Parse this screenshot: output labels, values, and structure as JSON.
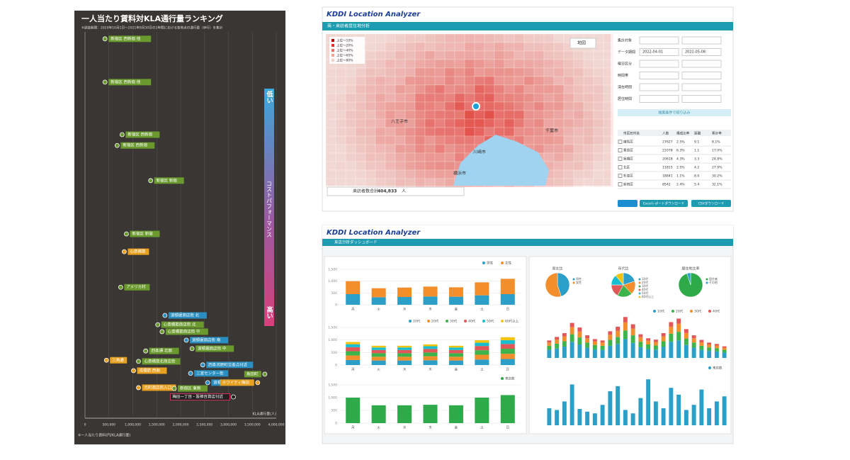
{
  "ranking_panel": {
    "title": "一人当たり賃料対KLA通行量ランキング",
    "subtitle": "※調査期間：2020年10月1日～2021年9月30日の1年間における各地点の通行量（歩行）を集計",
    "cost_low": "低い",
    "cost_axis": "コストパフォーマンス",
    "cost_high": "高い",
    "footnote": "※一人当たり賃料(円/KLA通行量)"
  },
  "map_app": {
    "brand": "KDDI Location Analyzer",
    "tab": "商・来訪者居住地分析",
    "map_type": "地図",
    "map_labels": [
      "八王子市",
      "川崎市",
      "横浜市",
      "千葉市"
    ],
    "legend": [
      "上位～10%",
      "上位～20%",
      "上位～40%",
      "上位～60%",
      "上位～80%"
    ],
    "visitor_total_label": "来訪者数合計",
    "visitor_total": "404,833",
    "visitor_unit": "人",
    "form_labels": [
      "集計対象",
      "データ期間",
      "曜日区分",
      "時間帯",
      "滞在時間",
      "居住時間"
    ],
    "date_from": "2022-04-01",
    "date_to": "2022-05-08",
    "filter_button": "検索条件で絞り込み",
    "table": {
      "header": [
        "市区町村名",
        "人数",
        "構成比率",
        "距離",
        "累計率"
      ],
      "rows": [
        [
          "練馬区",
          "27627",
          "2.5%",
          "9.1",
          "8.1%"
        ],
        [
          "豊島区",
          "22078",
          "6.3%",
          "1.1",
          "17.0%"
        ],
        [
          "板橋区",
          "20618",
          "4.3%",
          "3.3",
          "24.8%"
        ],
        [
          "北区",
          "11815",
          "2.5%",
          "4.2",
          "27.9%"
        ],
        [
          "杉並区",
          "18841",
          "1.1%",
          "8.0",
          "30.2%"
        ],
        [
          "新宿区",
          "8542",
          "2.4%",
          "5.4",
          "32.1%"
        ]
      ]
    },
    "buttons": [
      "Excelレポートダウンロード",
      "CSVダウンロード"
    ]
  },
  "dashboard_app": {
    "brand": "KDDI Location Analyzer",
    "tab": "来店分析ダッシュボード"
  },
  "chart_data": [
    {
      "type": "scatter",
      "x_label": "KLA通行量(人)",
      "xlim": [
        0,
        4000000
      ],
      "ylim": [
        0,
        10
      ],
      "xticks": [
        0,
        {
          "value": 500000,
          "label": "500,000"
        },
        {
          "value": 1000000,
          "label": "1,000,000"
        },
        {
          "value": 1500000,
          "label": "1,500,000"
        },
        {
          "value": 2000000,
          "label": "2,000,000"
        },
        {
          "value": 2500000,
          "label": "2,500,000"
        },
        {
          "value": 3000000,
          "label": "3,000,000"
        },
        {
          "value": 3500000,
          "label": "3,500,000"
        },
        {
          "value": 4000000,
          "label": "4,000,000"
        }
      ],
      "x": [
        418000,
        418000,
        776000,
        672000,
        1373000,
        866000,
        821000,
        746000,
        1672000,
        1522000,
        1612000,
        2119000,
        2239000,
        448000,
        1015000,
        1269000,
        1119000,
        2463000,
        2209000,
        1119000,
        1866000,
        2567000,
        3761000,
        3612000,
        3104000
      ],
      "values": [
        9.82,
        8.7,
        7.34,
        7.06,
        6.15,
        4.77,
        4.31,
        3.39,
        2.66,
        2.42,
        2.24,
        2.02,
        1.8,
        1.5,
        1.23,
        1.74,
        1.47,
        1.38,
        1.16,
        0.79,
        0.77,
        0.92,
        1.14,
        0.92,
        0.55
      ],
      "point_labels": [
        "新宿区 西新宿 他",
        "新宿区 西新宿 他",
        "新宿区 西新宿",
        "新宿区 西新宿",
        "新宿区 新宿",
        "新宿区 新宿",
        "心斎橋筋",
        "アメリカ村",
        "道頓堀商店街 北",
        "心斎橋筋商店街 北",
        "心斎橋筋商店街 中",
        "道頓堀商店街 南",
        "道頓堀商店街 中",
        "三角通",
        "戎橋筋 西側",
        "四条通 北側",
        "心斎橋筋北商店街",
        "四条河原町交差点付近",
        "三宮センター街",
        "元町商店街入口",
        "新宿区 東側",
        "道頓堀商店街 東",
        "角田町",
        "ホワイティ梅田",
        "梅田一丁目・阪神百貨店付近"
      ],
      "point_colors": [
        "#6a9a2e",
        "#6a9a2e",
        "#6a9a2e",
        "#6a9a2e",
        "#6a9a2e",
        "#6a9a2e",
        "#e8a020",
        "#6a9a2e",
        "#2a8fc0",
        "#6a9a2e",
        "#6a9a2e",
        "#2a8fc0",
        "#6a9a2e",
        "#e8a020",
        "#e8a020",
        "#6a9a2e",
        "#6a9a2e",
        "#2a8fc0",
        "#2a8fc0",
        "#e8a020",
        "#6a9a2e",
        "#2a8fc0",
        "#6a9a2e",
        "#e8a020",
        "#222222"
      ]
    },
    {
      "type": "bar",
      "stacked": true,
      "categories": [
        "月",
        "火",
        "水",
        "木",
        "金",
        "土",
        "日"
      ],
      "ylim": [
        0,
        1500
      ],
      "yticks": [
        0,
        500,
        {
          "value": 1000,
          "label": "1,000"
        },
        {
          "value": 1500,
          "label": "1,500"
        }
      ],
      "series": [
        {
          "name": "男性",
          "color": "#2c9fc9",
          "values": [
            450,
            320,
            330,
            350,
            340,
            400,
            450
          ]
        },
        {
          "name": "女性",
          "color": "#f28e2b",
          "values": [
            550,
            380,
            400,
            420,
            400,
            550,
            650
          ]
        }
      ]
    },
    {
      "type": "bar",
      "stacked": true,
      "categories": [
        "月",
        "火",
        "水",
        "木",
        "金",
        "土",
        "日"
      ],
      "ylim": [
        0,
        1500
      ],
      "yticks": [
        0,
        500,
        {
          "value": 1000,
          "label": "1,000"
        },
        {
          "value": 1500,
          "label": "1,500"
        }
      ],
      "series": [
        {
          "name": "10代",
          "color": "#2c9fc9",
          "values": [
            200,
            180,
            180,
            190,
            180,
            220,
            240
          ]
        },
        {
          "name": "20代",
          "color": "#f28e2b",
          "values": [
            180,
            150,
            150,
            160,
            150,
            190,
            210
          ]
        },
        {
          "name": "30代",
          "color": "#3cb44b",
          "values": [
            170,
            140,
            140,
            150,
            140,
            180,
            200
          ]
        },
        {
          "name": "40代",
          "color": "#e15759",
          "values": [
            160,
            130,
            130,
            140,
            130,
            170,
            190
          ]
        },
        {
          "name": "50代",
          "color": "#17becf",
          "values": [
            120,
            100,
            100,
            110,
            100,
            130,
            150
          ]
        },
        {
          "name": "60代以上",
          "color": "#f1c40f",
          "values": [
            90,
            70,
            70,
            75,
            70,
            100,
            120
          ]
        }
      ]
    },
    {
      "type": "bar",
      "stacked": false,
      "categories": [
        "月",
        "火",
        "水",
        "木",
        "金",
        "土",
        "日"
      ],
      "ylim": [
        0,
        1500
      ],
      "yticks": [
        0,
        500,
        {
          "value": 1000,
          "label": "1,000"
        },
        {
          "value": 1500,
          "label": "1,500"
        }
      ],
      "series": [
        {
          "name": "来店数",
          "color": "#2eaa4a",
          "values": [
            1000,
            700,
            700,
            720,
            700,
            1000,
            1100
          ]
        }
      ]
    },
    {
      "type": "pie",
      "title": "男女比",
      "series": [
        {
          "name": "男性",
          "color": "#2c9fc9",
          "values": [
            45
          ]
        },
        {
          "name": "女性",
          "color": "#f28e2b",
          "values": [
            55
          ]
        }
      ]
    },
    {
      "type": "pie",
      "title": "年代比",
      "series": [
        {
          "name": "10代",
          "color": "#2c9fc9",
          "values": [
            20
          ]
        },
        {
          "name": "20代",
          "color": "#f28e2b",
          "values": [
            18
          ]
        },
        {
          "name": "30代",
          "color": "#3cb44b",
          "values": [
            20
          ]
        },
        {
          "name": "40代",
          "color": "#e15759",
          "values": [
            17
          ]
        },
        {
          "name": "50代",
          "color": "#17becf",
          "values": [
            14
          ]
        },
        {
          "name": "60代以上",
          "color": "#f1c40f",
          "values": [
            11
          ]
        }
      ]
    },
    {
      "type": "pie",
      "title": "居住地比率",
      "series": [
        {
          "name": "居住者",
          "color": "#2eaa4a",
          "values": [
            95
          ]
        },
        {
          "name": "その他",
          "color": "#2c9fc9",
          "values": [
            5
          ]
        }
      ]
    },
    {
      "type": "bar",
      "stacked": true,
      "ylim": [
        0,
        1500
      ],
      "series": [
        {
          "name": "10代",
          "color": "#2c9fc9",
          "values": [
            300,
            350,
            420,
            600,
            500,
            380,
            320,
            300,
            450,
            520,
            700,
            560,
            400,
            330,
            310,
            420,
            600,
            650,
            480,
            380,
            300,
            260,
            240,
            200
          ]
        },
        {
          "name": "20代",
          "color": "#3cb44b",
          "values": [
            150,
            180,
            200,
            280,
            260,
            190,
            160,
            150,
            220,
            260,
            320,
            280,
            200,
            170,
            150,
            200,
            300,
            320,
            240,
            190,
            150,
            130,
            120,
            100
          ]
        },
        {
          "name": "30代",
          "color": "#f28e2b",
          "values": [
            120,
            150,
            180,
            260,
            220,
            160,
            130,
            120,
            190,
            230,
            300,
            250,
            170,
            140,
            130,
            180,
            260,
            300,
            210,
            160,
            130,
            110,
            100,
            80
          ]
        },
        {
          "name": "40代",
          "color": "#e15759",
          "values": [
            80,
            100,
            120,
            160,
            150,
            110,
            90,
            80,
            130,
            150,
            200,
            160,
            110,
            90,
            90,
            120,
            170,
            190,
            140,
            110,
            90,
            70,
            60,
            50
          ]
        }
      ]
    },
    {
      "type": "bar",
      "stacked": false,
      "ylim": [
        0,
        1500
      ],
      "series": [
        {
          "name": "来店数",
          "color": "#2c9fc9",
          "values": [
            500,
            450,
            700,
            1200,
            480,
            400,
            350,
            600,
            1000,
            1150,
            450,
            350,
            800,
            1350,
            700,
            500,
            1100,
            900,
            450,
            600,
            1050,
            500,
            700,
            850
          ]
        }
      ]
    }
  ]
}
